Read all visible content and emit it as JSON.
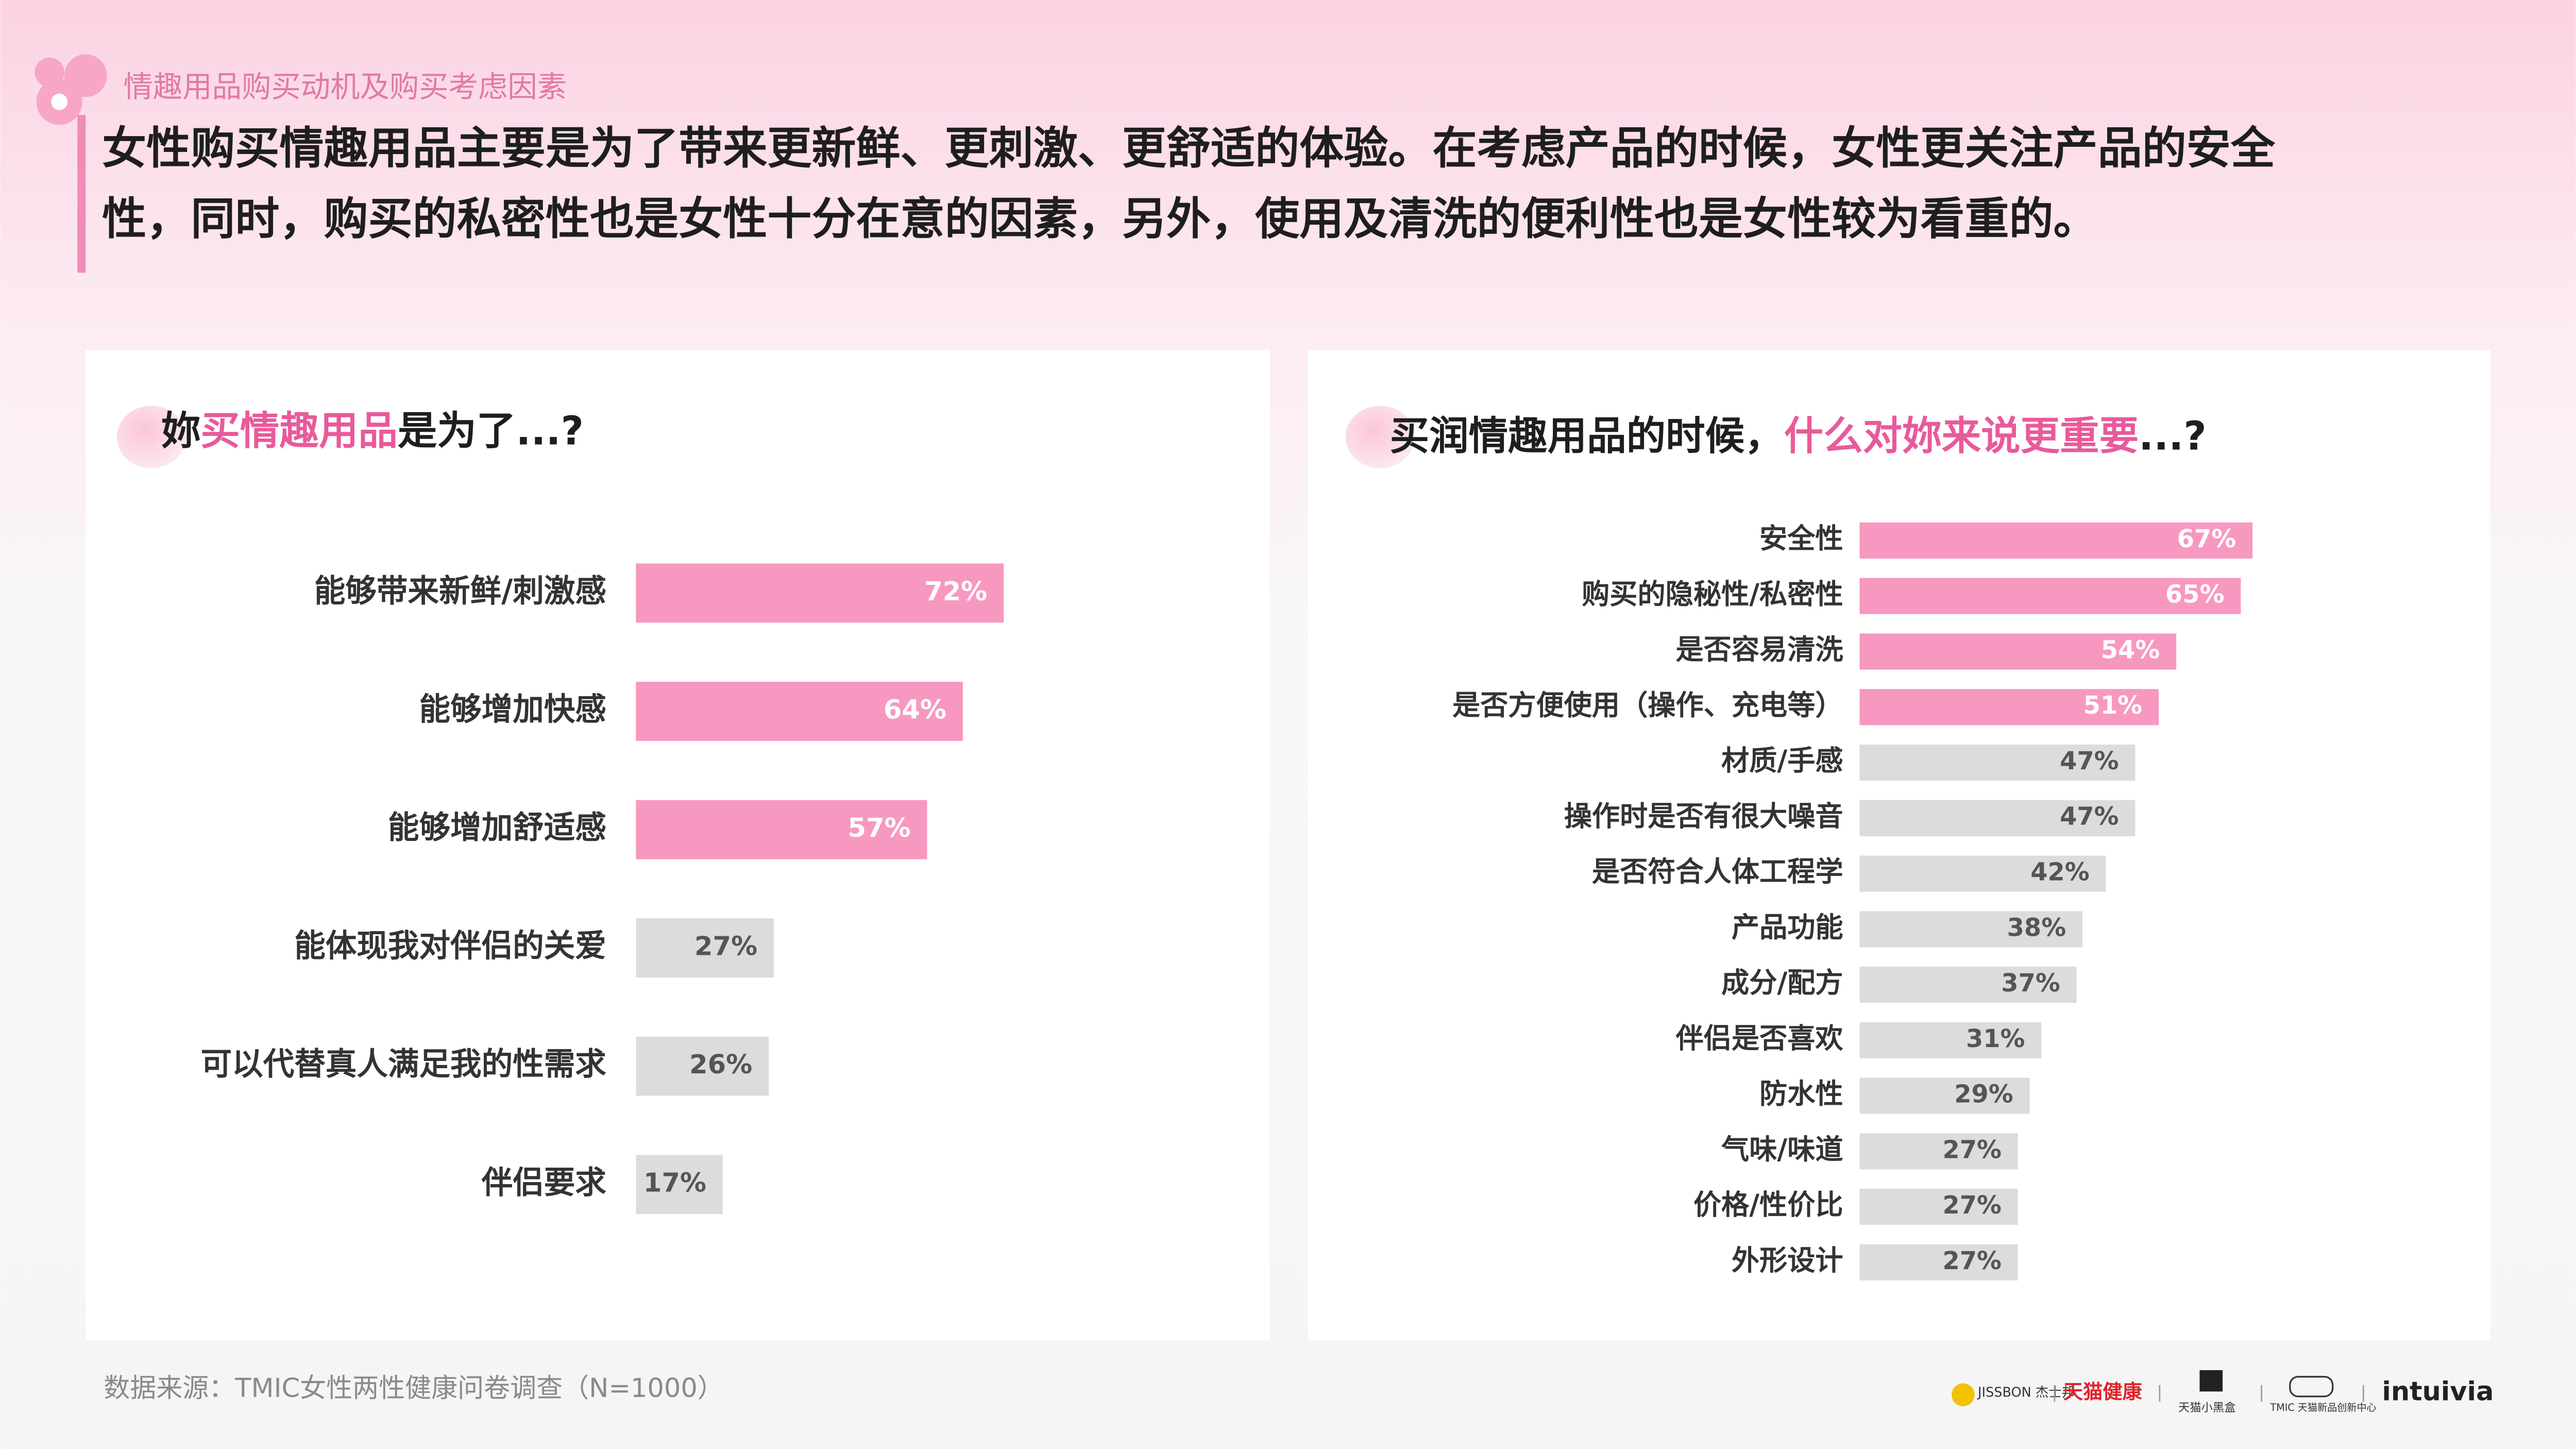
{
  "header": {
    "section": "情趣用品购买动机及购买考虑因素",
    "headline_lines": [
      "女性购买情趣用品主要是为了带来更新鲜、更刺激、更舒适的体验。在考虑产品的时候，女性更关注产品的安全",
      "性，同时，购买的私密性也是女性十分在意的因素，另外，使用及清洗的便利性也是女性较为看重的。"
    ]
  },
  "chart_data": [
    {
      "type": "bar",
      "orientation": "horizontal",
      "title_parts": [
        {
          "text": "妳",
          "highlight": false
        },
        {
          "text": "买情趣用品",
          "highlight": true
        },
        {
          "text": "是为了...?",
          "highlight": false
        }
      ],
      "categories": [
        "能够带来新鲜/刺激感",
        "能够增加快感",
        "能够增加舒适感",
        "能体现我对伴侣的关爱",
        "可以代替真人满足我的性需求",
        "伴侣要求"
      ],
      "values": [
        72,
        64,
        57,
        27,
        26,
        17
      ],
      "value_labels": [
        "72%",
        "64%",
        "57%",
        "27%",
        "26%",
        "17%"
      ],
      "colors": [
        "#f798c0",
        "#f798c0",
        "#f798c0",
        "#dcdcdc",
        "#dcdcdc",
        "#dcdcdc"
      ]
    },
    {
      "type": "bar",
      "orientation": "horizontal",
      "title_parts": [
        {
          "text": "买润情趣用品的时候，",
          "highlight": false
        },
        {
          "text": "什么对妳来说更重要",
          "highlight": true
        },
        {
          "text": "...?",
          "highlight": false
        }
      ],
      "categories": [
        "安全性",
        "购买的隐秘性/私密性",
        "是否容易清洗",
        "是否方便使用（操作、充电等）",
        "材质/手感",
        "操作时是否有很大噪音",
        "是否符合人体工程学",
        "产品功能",
        "成分/配方",
        "伴侣是否喜欢",
        "防水性",
        "气味/味道",
        "价格/性价比",
        "外形设计"
      ],
      "values": [
        67,
        65,
        54,
        51,
        47,
        47,
        42,
        38,
        37,
        31,
        29,
        27,
        27,
        27
      ],
      "value_labels": [
        "67%",
        "65%",
        "54%",
        "51%",
        "47%",
        "47%",
        "42%",
        "38%",
        "37%",
        "31%",
        "29%",
        "27%",
        "27%",
        "27%"
      ],
      "colors": [
        "#f798c0",
        "#f798c0",
        "#f798c0",
        "#f798c0",
        "#dcdcdc",
        "#dcdcdc",
        "#dcdcdc",
        "#dcdcdc",
        "#dcdcdc",
        "#dcdcdc",
        "#dcdcdc",
        "#dcdcdc",
        "#dcdcdc",
        "#dcdcdc"
      ]
    }
  ],
  "footer": {
    "source": "数据来源：TMIC女性两性健康问卷调查（N=1000）",
    "logos": [
      "JISSBON 杰士邦",
      "天猫健康",
      "天猫小黑盒",
      "TMIC 天猫新品创新中心",
      "intuivia"
    ]
  }
}
